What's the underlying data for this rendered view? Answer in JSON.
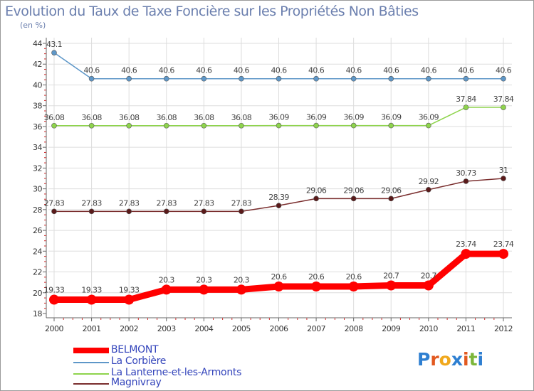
{
  "title": "Evolution du Taux de Taxe Foncière sur les Propriétés Non Bâties",
  "unit_label": "(en %)",
  "logo": {
    "letters": [
      "P",
      "r",
      "o",
      "x",
      "i",
      "t",
      "i"
    ],
    "colors": [
      "#2e7fd1",
      "#e2591f",
      "#f0a81c",
      "#2e7fd1",
      "#e2591f",
      "#7cb63a",
      "#2e7fd1"
    ]
  },
  "chart_data": {
    "type": "line",
    "title": "Evolution du Taux de Taxe Foncière sur les Propriétés Non Bâties",
    "ylabel": "(en %)",
    "xlabel": "",
    "ylim": [
      18,
      44
    ],
    "yticks": [
      18,
      20,
      22,
      24,
      26,
      28,
      30,
      32,
      34,
      36,
      38,
      40,
      42,
      44
    ],
    "categories": [
      "2000",
      "2001",
      "2002",
      "2003",
      "2004",
      "2005",
      "2006",
      "2007",
      "2008",
      "2009",
      "2010",
      "2011",
      "2012"
    ],
    "grid": true,
    "legend_position": "bottom-left",
    "series": [
      {
        "name": "BELMONT",
        "color": "#ff0000",
        "values": [
          19.33,
          19.33,
          19.33,
          20.3,
          20.3,
          20.3,
          20.6,
          20.6,
          20.6,
          20.7,
          20.7,
          23.74,
          23.74
        ],
        "labels": [
          "19.33",
          "19.33",
          "19.33",
          "20.3",
          "20.3",
          "20.3",
          "20.6",
          "20.6",
          "20.6",
          "20.7",
          "20.7",
          "23.74",
          "23.74"
        ]
      },
      {
        "name": "La Corbière",
        "color": "#5e97c8",
        "values": [
          43.1,
          40.6,
          40.6,
          40.6,
          40.6,
          40.6,
          40.6,
          40.6,
          40.6,
          40.6,
          40.6,
          40.6,
          40.6
        ],
        "labels": [
          "43.1",
          "40.6",
          "40.6",
          "40.6",
          "40.6",
          "40.6",
          "40.6",
          "40.6",
          "40.6",
          "40.6",
          "40.6",
          "40.6",
          "40.6"
        ]
      },
      {
        "name": "La Lanterne-et-les-Armonts",
        "color": "#8ed44c",
        "values": [
          36.08,
          36.08,
          36.08,
          36.08,
          36.08,
          36.08,
          36.09,
          36.09,
          36.09,
          36.09,
          36.09,
          37.84,
          37.84
        ],
        "labels": [
          "36.08",
          "36.08",
          "36.08",
          "36.08",
          "36.08",
          "36.08",
          "36.09",
          "36.09",
          "36.09",
          "36.09",
          "36.09",
          "37.84",
          "37.84"
        ]
      },
      {
        "name": "Magnivray",
        "color": "#7a2e2e",
        "values": [
          27.83,
          27.83,
          27.83,
          27.83,
          27.83,
          27.83,
          28.39,
          29.06,
          29.06,
          29.06,
          29.92,
          30.73,
          31
        ],
        "labels": [
          "27.83",
          "27.83",
          "27.83",
          "27.83",
          "27.83",
          "27.83",
          "28.39",
          "29.06",
          "29.06",
          "29.06",
          "29.92",
          "30.73",
          "31"
        ]
      }
    ]
  }
}
